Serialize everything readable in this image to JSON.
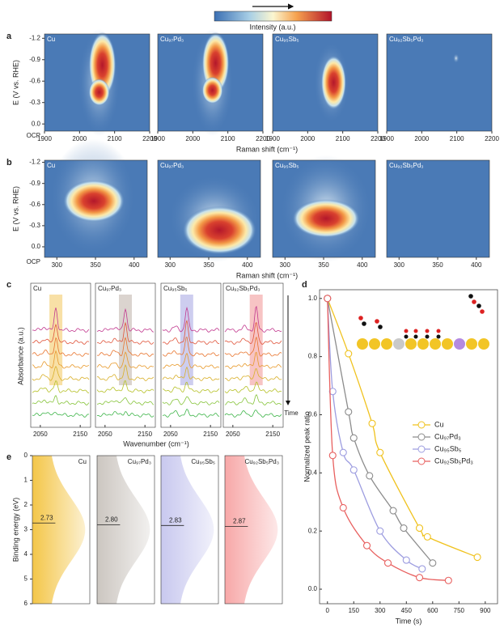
{
  "colorbar": {
    "label": "Intensity (a.u.)"
  },
  "chart_data": [
    {
      "type": "heatmap",
      "panel": "a",
      "titles": [
        "Cu",
        "Cu₉₇Pd₃",
        "Cu₉₅Sb₅",
        "Cu₉₂Sb₅Pd₃"
      ],
      "x_label": "Raman shift (cm⁻¹)",
      "y_label": "E (V vs. RHE)",
      "y_extra_label": "OCP",
      "xlim": [
        1900,
        2200
      ],
      "xticks": [
        1900,
        2000,
        2100,
        2200
      ],
      "ylim": [
        -1.26,
        0.1
      ],
      "yticks": [
        -1.2,
        -0.9,
        -0.6,
        -0.3,
        {
          "value": 0,
          "label": "0.0"
        }
      ]
    },
    {
      "type": "heatmap",
      "panel": "b",
      "titles": [
        "Cu",
        "Cu₉₇Pd₃",
        "Cu₉₅Sb₅",
        "Cu₉₂Sb₅Pd₃"
      ],
      "x_label": "Raman shift (cm⁻¹)",
      "y_label": "E (V vs. RHE)",
      "y_extra_label": "OCP",
      "xlim": [
        284,
        417
      ],
      "xticks": [
        300,
        350,
        400
      ],
      "ylim": [
        -1.23,
        0.15
      ],
      "yticks": [
        -1.2,
        -0.9,
        -0.6,
        -0.3,
        {
          "value": 0,
          "label": "0.0"
        }
      ]
    },
    {
      "type": "spectra",
      "panel": "c",
      "titles": [
        "Cu",
        "Cu₉₇Pd₃",
        "Cu₉₅Sb₅",
        "Cu₉₂Sb₅Pd₃"
      ],
      "x_label": "Wavenumber (cm⁻¹)",
      "y_label": "Absorbance (a.u.)",
      "time_label": "Time",
      "xlim": [
        2026,
        2176
      ],
      "xticks": [
        2050,
        2150
      ]
    },
    {
      "type": "line",
      "panel": "d",
      "x_label": "Time (s)",
      "y_label": "Normalized peak ratio",
      "xlim": [
        -45,
        970
      ],
      "xticks": [
        0,
        150,
        300,
        450,
        600,
        750,
        900
      ],
      "ylim": [
        -0.05,
        1.03
      ],
      "yticks": [
        {
          "value": 0,
          "label": "0.0"
        },
        0.2,
        0.4,
        0.6,
        0.8,
        {
          "value": 1,
          "label": "1.0"
        }
      ],
      "series": [
        {
          "name": "Cu",
          "color": "#f0c21e",
          "x": [
            0,
            120,
            255,
            300,
            525,
            570,
            855
          ],
          "values": [
            1.0,
            0.81,
            0.57,
            0.47,
            0.21,
            0.18,
            0.11
          ]
        },
        {
          "name": "Cu₉₇Pd₃",
          "color": "#8c8c8c",
          "x": [
            0,
            120,
            150,
            240,
            375,
            435,
            600
          ],
          "values": [
            1.0,
            0.61,
            0.52,
            0.39,
            0.27,
            0.21,
            0.09
          ]
        },
        {
          "name": "Cu₉₅Sb₅",
          "color": "#9d9de0",
          "x": [
            0,
            30,
            90,
            150,
            300,
            450,
            540
          ],
          "values": [
            1.0,
            0.68,
            0.47,
            0.41,
            0.2,
            0.1,
            0.07
          ]
        },
        {
          "name": "Cu₉₂Sb₅Pd₃",
          "color": "#e8605f",
          "x": [
            0,
            30,
            90,
            225,
            345,
            525,
            690
          ],
          "values": [
            1.0,
            0.46,
            0.28,
            0.15,
            0.09,
            0.04,
            0.03
          ]
        }
      ]
    },
    {
      "type": "distribution",
      "panel": "e",
      "titles": [
        "Cu",
        "Cu₉₇Pd₃",
        "Cu₉₅Sb₅",
        "Cu₉₂Sb₅Pd₃"
      ],
      "y_label": "Binding energy (eV)",
      "ylim": [
        0,
        6
      ],
      "yticks": [
        0,
        1,
        2,
        3,
        4,
        5,
        6
      ],
      "values": [
        2.73,
        2.8,
        2.83,
        2.87
      ],
      "value_labels": [
        "2.73",
        "2.80",
        "2.83",
        "2.87"
      ],
      "colors": [
        "#f3c33f",
        "#c9c3bd",
        "#c5c5ee",
        "#f7a3a3"
      ]
    }
  ]
}
